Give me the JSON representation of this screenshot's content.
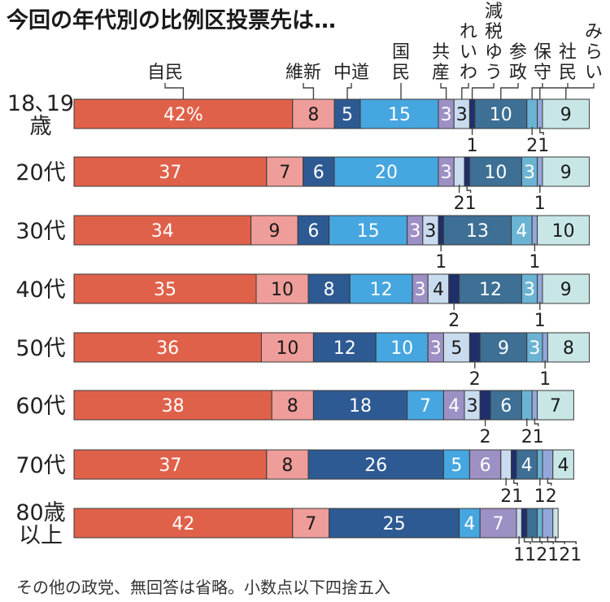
{
  "chart_data": {
    "type": "bar",
    "orientation": "horizontal-stacked",
    "title": "今回の年代別の比例区投票先は…",
    "unit_suffix_first": "%",
    "note": "その他の政党、無回答は省略。小数点以下四捨五入",
    "series": [
      {
        "name": "自民",
        "color": "#e0614a"
      },
      {
        "name": "維新",
        "color": "#ef9d9a"
      },
      {
        "name": "中道",
        "color": "#2e5a93"
      },
      {
        "name": "国民",
        "color": "#45a6e0"
      },
      {
        "name": "共産",
        "color": "#9d90c4"
      },
      {
        "name": "れいわ",
        "color": "#c9dbef"
      },
      {
        "name": "減税ゆう",
        "color": "#1e2f6b"
      },
      {
        "name": "参政",
        "color": "#3e6f95"
      },
      {
        "name": "保守",
        "color": "#6ab3d3"
      },
      {
        "name": "社民",
        "color": "#93a7d9"
      },
      {
        "name": "みらい",
        "color": "#c8e6e6"
      }
    ],
    "party_header_lines": [
      [
        "自民"
      ],
      [
        "維新"
      ],
      [
        "中道"
      ],
      [
        "国",
        "民"
      ],
      [
        "共",
        "産"
      ],
      [
        "れ",
        "い",
        "わ"
      ],
      [
        "減",
        "税",
        "ゆ",
        "う"
      ],
      [
        "参",
        "政"
      ],
      [
        "保",
        "守"
      ],
      [
        "社",
        "民"
      ],
      [
        "み",
        "ら",
        "い"
      ]
    ],
    "categories": [
      {
        "label_lines": [
          "18､19",
          "歳"
        ],
        "values": [
          42,
          8,
          5,
          15,
          3,
          3,
          1,
          10,
          2,
          1,
          9
        ]
      },
      {
        "label_lines": [
          "20代"
        ],
        "values": [
          37,
          7,
          6,
          20,
          3,
          2,
          1,
          10,
          3,
          1,
          9
        ]
      },
      {
        "label_lines": [
          "30代"
        ],
        "values": [
          34,
          9,
          6,
          15,
          3,
          3,
          1,
          13,
          4,
          1,
          10
        ]
      },
      {
        "label_lines": [
          "40代"
        ],
        "values": [
          35,
          10,
          8,
          12,
          3,
          4,
          2,
          12,
          3,
          1,
          9
        ]
      },
      {
        "label_lines": [
          "50代"
        ],
        "values": [
          36,
          10,
          12,
          10,
          3,
          5,
          2,
          9,
          3,
          1,
          8
        ]
      },
      {
        "label_lines": [
          "60代"
        ],
        "values": [
          38,
          8,
          18,
          7,
          4,
          3,
          2,
          6,
          2,
          1,
          7
        ]
      },
      {
        "label_lines": [
          "70代"
        ],
        "values": [
          37,
          8,
          26,
          5,
          6,
          2,
          1,
          4,
          1,
          2,
          4
        ]
      },
      {
        "label_lines": [
          "80歳",
          "以上"
        ],
        "values": [
          42,
          7,
          25,
          4,
          7,
          1,
          1,
          2,
          1,
          2,
          1
        ]
      }
    ],
    "xlim": [
      0,
      100
    ],
    "grid": false,
    "legend": "top-labels"
  }
}
